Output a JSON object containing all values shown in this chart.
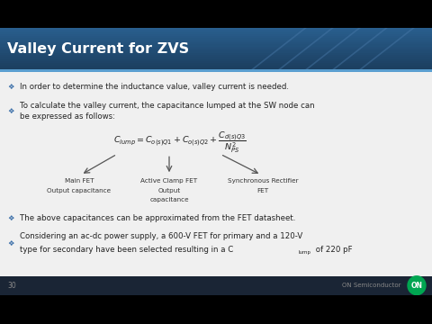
{
  "title": "Valley Current for ZVS",
  "bullet1": "In order to determine the inductance value, valley current is needed.",
  "bullet2_line1": "To calculate the valley current, the capacitance lumped at the SW node can",
  "bullet2_line2": "be expressed as follows:",
  "bullet3": "The above capacitances can be approximated from the FET datasheet.",
  "bullet4_line1": "Considering an ac-dc power supply, a 600-V FET for primary and a 120-V",
  "bullet4_line2": "type for secondary have been selected resulting in a C",
  "bullet4_sub": "lump",
  "bullet4_end": " of 220 pF",
  "footer_num": "30",
  "footer_brand": "ON Semiconductor",
  "footer_logo": "ON",
  "header_color": "#1c3f60",
  "header_color2": "#2a6090",
  "content_bg": "#e8e8e8",
  "slide_bg": "#d5d5d5",
  "text_color": "#222222",
  "bullet_color": "#3a6ea8",
  "footer_bg": "#1a2a3a",
  "logo_color": "#00a651",
  "accent_line_color": "#5090c0",
  "arrow_color": "#555555",
  "label_color": "#333333"
}
